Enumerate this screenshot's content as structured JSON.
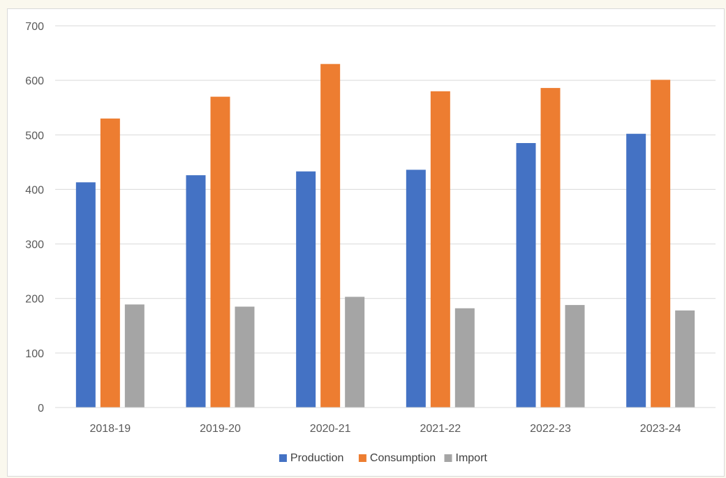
{
  "chart_data": {
    "type": "bar",
    "title": "",
    "xlabel": "",
    "ylabel": "",
    "categories": [
      "2018-19",
      "2019-20",
      "2020-21",
      "2021-22",
      "2022-23",
      "2023-24"
    ],
    "series": [
      {
        "name": "Production",
        "color": "#4472c4",
        "values": [
          413,
          426,
          433,
          436,
          485,
          502
        ]
      },
      {
        "name": "Consumption",
        "color": "#ed7d31",
        "values": [
          530,
          570,
          630,
          580,
          586,
          601
        ]
      },
      {
        "name": "Import",
        "color": "#a5a5a5",
        "values": [
          189,
          185,
          203,
          182,
          188,
          178
        ]
      }
    ],
    "ylim": [
      0,
      700
    ],
    "yticks": [
      0,
      100,
      200,
      300,
      400,
      500,
      600,
      700
    ],
    "grid": true,
    "legend_position": "bottom"
  }
}
